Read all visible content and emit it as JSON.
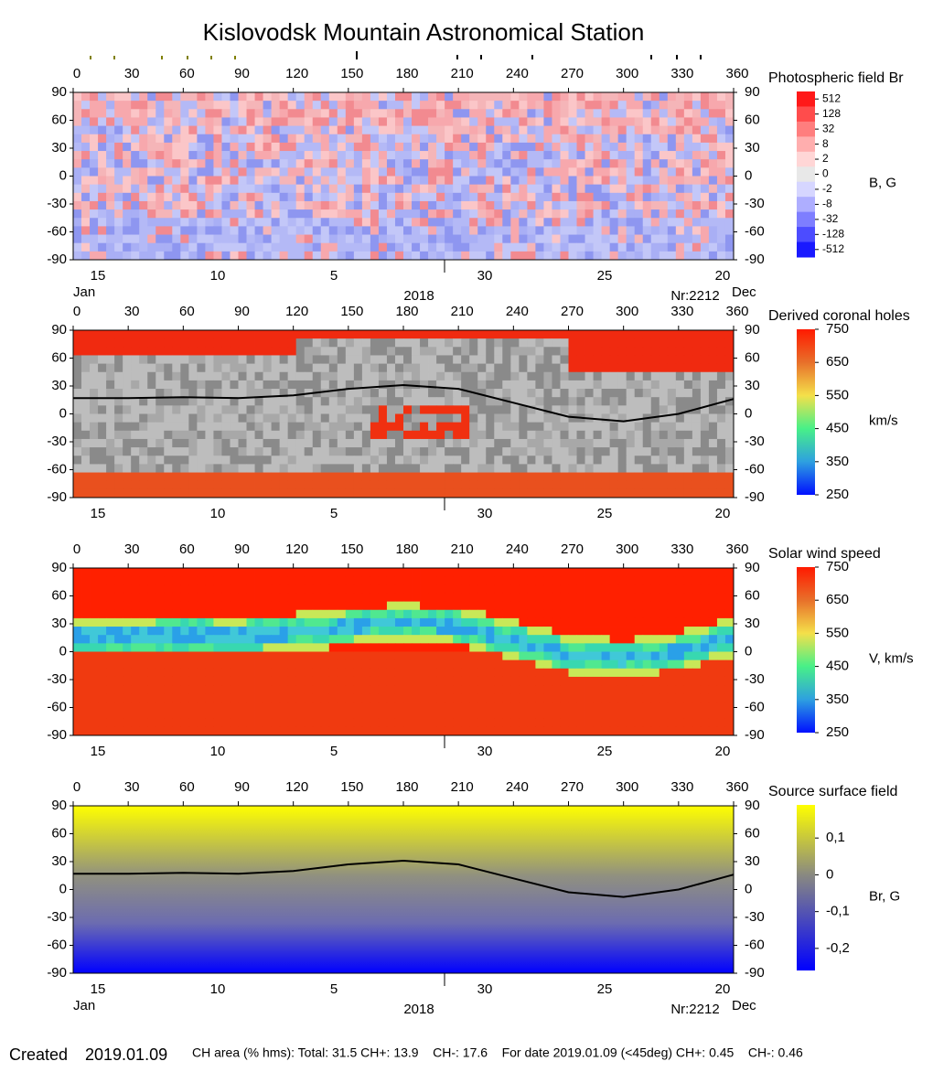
{
  "title": "Kislovodsk Mountain Astronomical Station",
  "x_axis": {
    "lim": [
      0,
      360
    ],
    "ticks": [
      0,
      30,
      60,
      90,
      120,
      150,
      180,
      210,
      240,
      270,
      300,
      330,
      360
    ]
  },
  "y_axis": {
    "lim": [
      -90,
      90
    ],
    "ticks": [
      90,
      60,
      30,
      0,
      -30,
      -60,
      -90
    ]
  },
  "date_axis": {
    "labels": [
      "15",
      "10",
      "5",
      "30",
      "25",
      "20"
    ],
    "start_month": "Jan",
    "end_month": "Dec",
    "year": "2018",
    "rotation": "Nr:2212"
  },
  "panels": [
    {
      "title": "Photospheric field Br",
      "unit": "B, G",
      "month_labels": true,
      "colorbar_ticks": [
        512,
        128,
        32,
        8,
        2,
        0,
        -2,
        -8,
        -32,
        -128,
        -512
      ]
    },
    {
      "title": "Derived coronal holes",
      "unit": "km/s",
      "month_labels": false,
      "clim": [
        250,
        750
      ],
      "colorbar_ticks": [
        750,
        650,
        550,
        450,
        350,
        250
      ]
    },
    {
      "title": "Solar wind speed",
      "unit": "V, km/s",
      "month_labels": false,
      "clim": [
        250,
        750
      ],
      "colorbar_ticks": [
        750,
        650,
        550,
        450,
        350,
        250
      ]
    },
    {
      "title": "Source surface field",
      "unit": "Br, G",
      "month_labels": true,
      "clim": [
        -0.26,
        0.19
      ],
      "colorbar_ticks": [
        {
          "value": 0.1,
          "label": "0,1"
        },
        0,
        {
          "value": -0.1,
          "label": "-0,1"
        },
        {
          "value": -0.2,
          "label": "-0,2"
        }
      ]
    }
  ],
  "neutral_line": {
    "x": [
      0,
      30,
      60,
      90,
      120,
      150,
      180,
      210,
      240,
      270,
      300,
      330,
      360
    ],
    "y": [
      17,
      17,
      18,
      17,
      20,
      27,
      31,
      27,
      12,
      -3,
      -8,
      0,
      16
    ]
  },
  "footer": {
    "created_label": "Created",
    "created_date": "2019.01.09",
    "stats": "CH area (% hms): Total: 31.5 CH+: 13.9    CH-: 17.6    For date 2019.01.09 (<45deg) CH+: 0.45    CH-: 0.46"
  }
}
